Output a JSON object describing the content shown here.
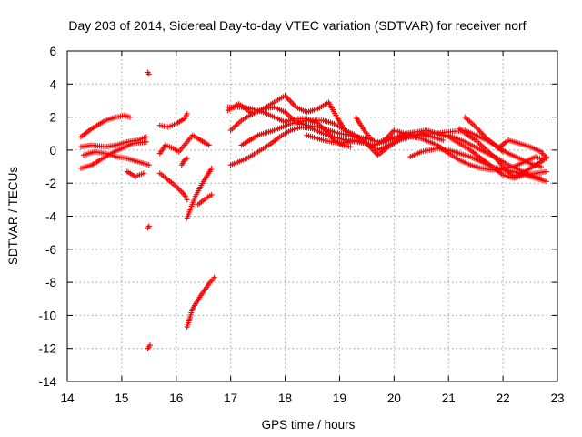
{
  "chart_data": {
    "type": "scatter",
    "title": "Day 203 of 2014, Sidereal Day-to-day VTEC variation (SDTVAR) for receiver norf",
    "xlabel": "GPS time / hours",
    "ylabel": "SDTVAR / TECUs",
    "xlim": [
      14,
      23
    ],
    "ylim": [
      -14,
      6
    ],
    "xticks": [
      "14",
      "15",
      "16",
      "17",
      "18",
      "19",
      "20",
      "21",
      "22",
      "23"
    ],
    "yticks": [
      "6",
      "4",
      "2",
      "0",
      "-2",
      "-4",
      "-6",
      "-8",
      "-10",
      "-12",
      "-14"
    ],
    "grid": true,
    "marker": "+",
    "color": "#ff0000",
    "series": [
      {
        "name": "track-1",
        "points": [
          [
            14.25,
            0.8
          ],
          [
            14.45,
            1.3
          ],
          [
            14.7,
            1.8
          ],
          [
            14.9,
            2.0
          ],
          [
            15.05,
            2.1
          ],
          [
            15.15,
            2.0
          ]
        ]
      },
      {
        "name": "track-2",
        "points": [
          [
            14.25,
            0.2
          ],
          [
            14.45,
            0.3
          ],
          [
            14.7,
            0.2
          ],
          [
            14.9,
            0.3
          ],
          [
            15.1,
            0.5
          ],
          [
            15.3,
            0.6
          ],
          [
            15.45,
            0.8
          ]
        ]
      },
      {
        "name": "track-3",
        "points": [
          [
            14.25,
            -1.1
          ],
          [
            14.45,
            -0.9
          ],
          [
            14.6,
            -0.6
          ],
          [
            14.8,
            -0.2
          ],
          [
            15.0,
            0.1
          ],
          [
            15.2,
            0.4
          ],
          [
            15.45,
            0.5
          ]
        ]
      },
      {
        "name": "track-4",
        "points": [
          [
            14.3,
            -0.3
          ],
          [
            14.5,
            -0.1
          ],
          [
            14.7,
            -0.2
          ],
          [
            14.9,
            -0.4
          ],
          [
            15.1,
            -0.5
          ],
          [
            15.3,
            -0.7
          ],
          [
            15.5,
            -0.9
          ]
        ]
      },
      {
        "name": "track-5",
        "points": [
          [
            15.1,
            -1.3
          ],
          [
            15.25,
            -1.6
          ],
          [
            15.4,
            -1.4
          ]
        ]
      },
      {
        "name": "track-6",
        "points": [
          [
            15.48,
            4.7
          ],
          [
            15.5,
            4.6
          ]
        ]
      },
      {
        "name": "track-7",
        "points": [
          [
            15.48,
            -4.7
          ],
          [
            15.5,
            -4.6
          ]
        ]
      },
      {
        "name": "track-8",
        "points": [
          [
            15.48,
            -12.0
          ],
          [
            15.52,
            -11.8
          ]
        ]
      },
      {
        "name": "track-9",
        "points": [
          [
            15.7,
            1.5
          ],
          [
            15.85,
            1.4
          ],
          [
            16.0,
            1.6
          ],
          [
            16.15,
            1.9
          ],
          [
            16.2,
            2.2
          ]
        ]
      },
      {
        "name": "track-10",
        "points": [
          [
            15.7,
            -0.2
          ],
          [
            15.8,
            0.3
          ],
          [
            15.95,
            0.1
          ],
          [
            16.05,
            -0.1
          ],
          [
            16.15,
            0.3
          ],
          [
            16.3,
            0.9
          ],
          [
            16.45,
            0.6
          ],
          [
            16.6,
            0.3
          ]
        ]
      },
      {
        "name": "track-11",
        "points": [
          [
            15.7,
            -1.4
          ],
          [
            15.85,
            -1.8
          ],
          [
            16.0,
            -2.2
          ],
          [
            16.15,
            -2.7
          ],
          [
            16.2,
            -3.0
          ]
        ]
      },
      {
        "name": "track-12",
        "points": [
          [
            16.1,
            -0.9
          ],
          [
            16.15,
            -0.6
          ],
          [
            16.2,
            -0.5
          ]
        ]
      },
      {
        "name": "track-13",
        "points": [
          [
            16.2,
            -4.1
          ],
          [
            16.35,
            -2.8
          ],
          [
            16.5,
            -1.9
          ],
          [
            16.65,
            -1.1
          ]
        ]
      },
      {
        "name": "track-14",
        "points": [
          [
            16.4,
            -3.3
          ],
          [
            16.55,
            -2.9
          ],
          [
            16.65,
            -2.7
          ]
        ]
      },
      {
        "name": "track-15",
        "points": [
          [
            16.2,
            -10.7
          ],
          [
            16.3,
            -9.6
          ],
          [
            16.45,
            -8.8
          ],
          [
            16.6,
            -8.1
          ],
          [
            16.7,
            -7.7
          ]
        ]
      },
      {
        "name": "track-16",
        "points": [
          [
            16.95,
            2.6
          ],
          [
            17.2,
            2.6
          ],
          [
            17.4,
            2.5
          ],
          [
            17.6,
            2.3
          ],
          [
            17.8,
            2.0
          ],
          [
            18.0,
            1.7
          ],
          [
            18.2,
            1.9
          ],
          [
            18.4,
            1.9
          ],
          [
            18.6,
            1.6
          ],
          [
            18.75,
            1.2
          ],
          [
            18.9,
            0.6
          ],
          [
            19.05,
            0.3
          ],
          [
            19.2,
            0.2
          ]
        ]
      },
      {
        "name": "track-17",
        "points": [
          [
            16.95,
            2.4
          ],
          [
            17.15,
            2.8
          ],
          [
            17.4,
            2.2
          ],
          [
            17.6,
            2.5
          ],
          [
            17.8,
            2.9
          ],
          [
            18.0,
            3.3
          ],
          [
            18.2,
            2.6
          ],
          [
            18.4,
            2.3
          ],
          [
            18.6,
            2.5
          ],
          [
            18.8,
            2.9
          ],
          [
            18.95,
            2.0
          ],
          [
            19.1,
            1.2
          ],
          [
            19.3,
            0.8
          ],
          [
            19.5,
            0.7
          ],
          [
            19.7,
            0.5
          ]
        ]
      },
      {
        "name": "track-18",
        "points": [
          [
            17.0,
            1.2
          ],
          [
            17.2,
            1.8
          ],
          [
            17.4,
            2.2
          ],
          [
            17.6,
            2.5
          ],
          [
            17.8,
            2.6
          ],
          [
            18.0,
            2.3
          ],
          [
            18.2,
            1.7
          ],
          [
            18.4,
            1.5
          ],
          [
            18.6,
            1.4
          ],
          [
            18.8,
            1.2
          ],
          [
            19.0,
            1.0
          ],
          [
            19.2,
            0.9
          ],
          [
            19.4,
            0.6
          ],
          [
            19.6,
            0.2
          ],
          [
            19.8,
            0.6
          ],
          [
            20.0,
            0.8
          ],
          [
            20.3,
            1.0
          ]
        ]
      },
      {
        "name": "track-19",
        "points": [
          [
            17.0,
            -0.9
          ],
          [
            17.3,
            -0.5
          ],
          [
            17.5,
            -0.1
          ],
          [
            17.7,
            0.3
          ],
          [
            17.9,
            0.8
          ],
          [
            18.1,
            1.2
          ],
          [
            18.3,
            1.4
          ],
          [
            18.5,
            1.3
          ],
          [
            18.7,
            1.0
          ],
          [
            18.9,
            0.8
          ],
          [
            19.1,
            0.6
          ],
          [
            19.3,
            0.5
          ],
          [
            19.5,
            0.4
          ],
          [
            19.7,
            0.0
          ],
          [
            19.9,
            0.3
          ],
          [
            20.1,
            0.7
          ],
          [
            20.3,
            0.9
          ],
          [
            20.5,
            1.0
          ],
          [
            20.7,
            0.8
          ],
          [
            20.9,
            0.6
          ]
        ]
      },
      {
        "name": "track-20",
        "points": [
          [
            17.2,
            0.3
          ],
          [
            17.5,
            0.9
          ],
          [
            17.8,
            1.2
          ],
          [
            18.1,
            1.6
          ],
          [
            18.4,
            1.8
          ],
          [
            18.7,
            1.8
          ],
          [
            18.9,
            1.6
          ],
          [
            19.1,
            1.2
          ],
          [
            19.3,
            0.9
          ],
          [
            19.5,
            0.4
          ],
          [
            19.7,
            -0.3
          ],
          [
            19.9,
            0.2
          ],
          [
            20.1,
            0.6
          ],
          [
            20.4,
            0.9
          ],
          [
            20.7,
            1.0
          ],
          [
            21.0,
            1.1
          ],
          [
            21.3,
            1.2
          ],
          [
            21.5,
            0.9
          ],
          [
            21.7,
            0.6
          ],
          [
            21.9,
            0.2
          ],
          [
            22.1,
            -0.2
          ],
          [
            22.3,
            -0.5
          ],
          [
            22.5,
            -0.8
          ],
          [
            22.7,
            -1.0
          ]
        ]
      },
      {
        "name": "track-21",
        "points": [
          [
            18.4,
            0.9
          ],
          [
            18.7,
            0.6
          ],
          [
            19.0,
            0.4
          ],
          [
            19.3,
            0.6
          ],
          [
            19.6,
            0.3
          ],
          [
            19.9,
            0.6
          ],
          [
            20.2,
            0.9
          ],
          [
            20.5,
            0.7
          ],
          [
            20.8,
            0.3
          ],
          [
            21.0,
            -0.2
          ],
          [
            21.2,
            -0.6
          ],
          [
            21.4,
            -0.9
          ],
          [
            21.6,
            -1.1
          ],
          [
            21.8,
            -1.2
          ],
          [
            22.0,
            -1.1
          ],
          [
            22.2,
            -1.0
          ],
          [
            22.4,
            -0.7
          ],
          [
            22.6,
            -0.4
          ],
          [
            22.75,
            -0.6
          ]
        ]
      },
      {
        "name": "track-22",
        "points": [
          [
            19.3,
            2.0
          ],
          [
            19.45,
            1.2
          ],
          [
            19.6,
            0.6
          ]
        ]
      },
      {
        "name": "track-23",
        "points": [
          [
            19.8,
            0.5
          ],
          [
            20.0,
            1.2
          ],
          [
            20.2,
            1.0
          ],
          [
            20.4,
            1.1
          ],
          [
            20.6,
            1.2
          ],
          [
            20.8,
            1.0
          ],
          [
            21.0,
            0.8
          ],
          [
            21.2,
            0.4
          ],
          [
            21.4,
            0.0
          ],
          [
            21.6,
            -0.5
          ],
          [
            21.8,
            -1.0
          ],
          [
            22.0,
            -1.5
          ],
          [
            22.2,
            -1.7
          ],
          [
            22.4,
            -1.5
          ],
          [
            22.6,
            -1.4
          ],
          [
            22.8,
            -1.3
          ]
        ]
      },
      {
        "name": "track-24",
        "points": [
          [
            20.3,
            -0.4
          ],
          [
            20.5,
            -0.1
          ],
          [
            20.8,
            0.1
          ],
          [
            21.0,
            0.0
          ],
          [
            21.2,
            -0.2
          ],
          [
            21.4,
            -0.4
          ],
          [
            21.6,
            -0.7
          ],
          [
            21.8,
            -1.0
          ],
          [
            22.0,
            -1.2
          ],
          [
            22.2,
            -1.3
          ],
          [
            22.4,
            -1.5
          ],
          [
            22.6,
            -1.7
          ],
          [
            22.8,
            -1.9
          ]
        ]
      },
      {
        "name": "track-25",
        "points": [
          [
            21.2,
            1.3
          ],
          [
            21.35,
            0.9
          ],
          [
            21.5,
            0.6
          ],
          [
            21.7,
            0.0
          ],
          [
            21.9,
            -0.6
          ],
          [
            22.05,
            -1.2
          ],
          [
            22.2,
            -1.6
          ],
          [
            22.35,
            -1.4
          ],
          [
            22.55,
            -1.0
          ],
          [
            22.7,
            -0.7
          ],
          [
            22.8,
            -0.4
          ]
        ]
      },
      {
        "name": "track-26",
        "points": [
          [
            21.0,
            0.9
          ],
          [
            21.3,
            0.5
          ],
          [
            21.6,
            0.0
          ],
          [
            21.9,
            -0.5
          ],
          [
            22.1,
            -0.9
          ],
          [
            22.3,
            -1.2
          ],
          [
            22.5,
            -1.5
          ],
          [
            22.7,
            -1.7
          ]
        ]
      },
      {
        "name": "track-27",
        "points": [
          [
            21.3,
            2.0
          ],
          [
            21.5,
            1.4
          ],
          [
            21.7,
            0.7
          ],
          [
            21.9,
            0.2
          ],
          [
            22.0,
            -0.1
          ]
        ]
      },
      {
        "name": "track-28",
        "points": [
          [
            21.9,
            0.1
          ],
          [
            22.1,
            0.6
          ],
          [
            22.3,
            0.4
          ],
          [
            22.5,
            0.2
          ],
          [
            22.7,
            -0.1
          ],
          [
            22.8,
            -0.5
          ]
        ]
      }
    ]
  }
}
